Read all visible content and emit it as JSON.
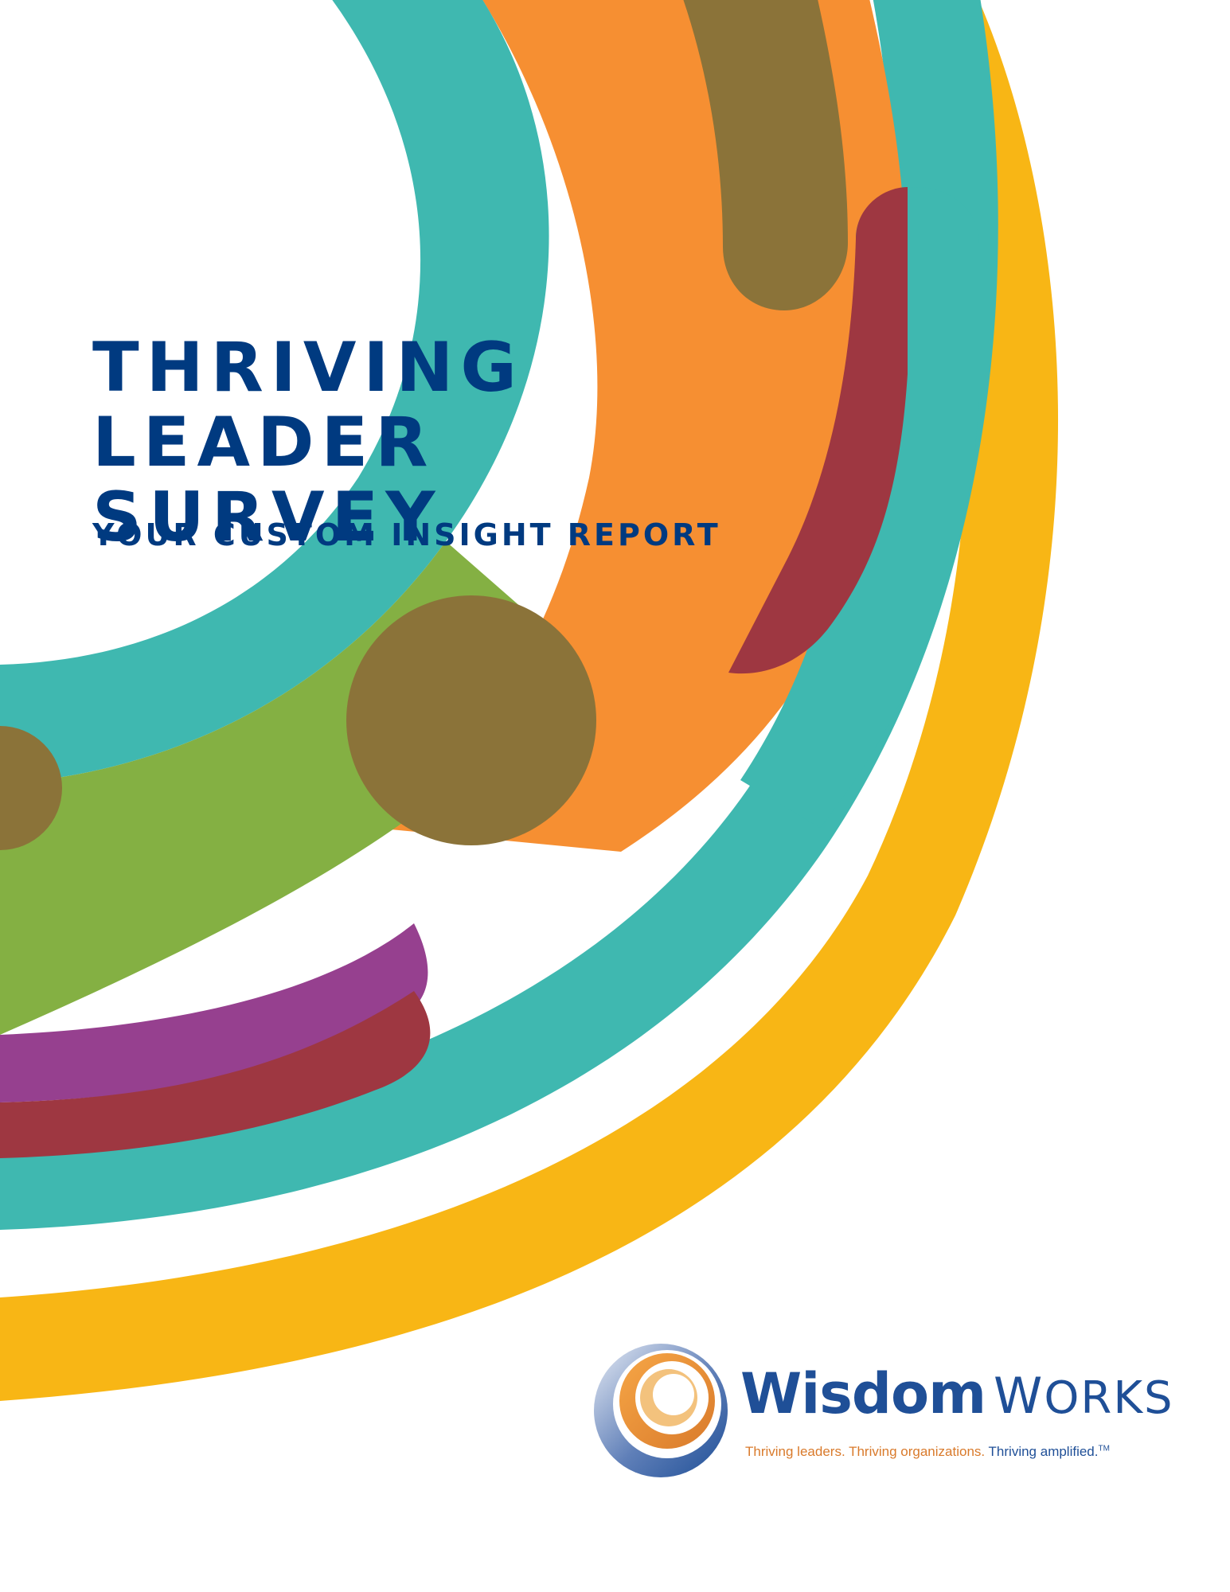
{
  "document": {
    "title_line_1": "THRIVING LEADER",
    "title_line_2": "SURVEY",
    "subtitle": "YOUR CUSTOM INSIGHT REPORT"
  },
  "logo": {
    "brand_bold": "Wisdom",
    "brand_light_initial": "W",
    "brand_light_rest": "ORKS",
    "tagline_part_1": "Thriving leaders.",
    "tagline_part_2": "Thriving organizations.",
    "tagline_part_3": "Thriving amplified.",
    "trademark": "TM",
    "icon": "swirl-circle-icon"
  },
  "colors": {
    "title_navy": "#003a80",
    "teal": "#3fb8b0",
    "orange": "#f68f32",
    "yellow": "#f8b615",
    "green": "#84b043",
    "purple": "#96408f",
    "maroon": "#9e3741",
    "olive_brown": "#8b7339",
    "logo_blue": "#1f4f97",
    "logo_orange": "#d97a2b"
  }
}
